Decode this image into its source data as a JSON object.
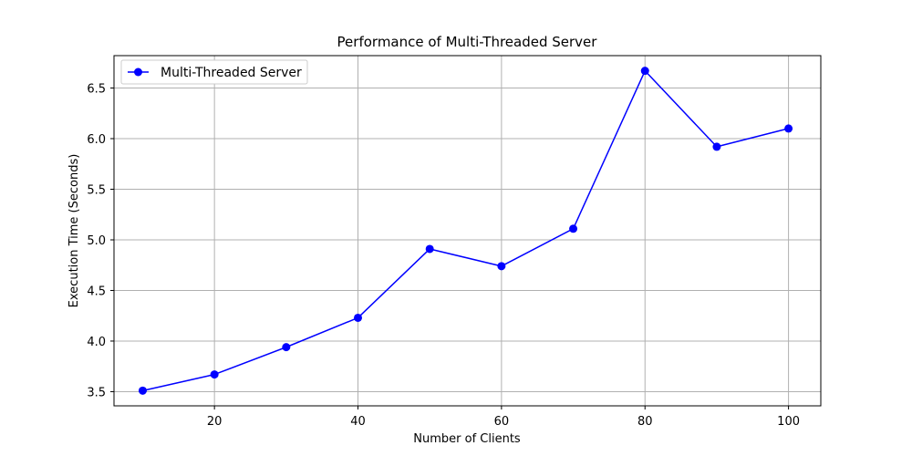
{
  "chart_data": {
    "type": "line",
    "title": "Performance of Multi-Threaded Server",
    "xlabel": "Number of Clients",
    "ylabel": "Execution Time (Seconds)",
    "x": [
      10,
      20,
      30,
      40,
      50,
      60,
      70,
      80,
      90,
      100
    ],
    "series": [
      {
        "name": "Multi-Threaded Server",
        "color": "#0000ff",
        "marker": "circle",
        "values": [
          3.51,
          3.67,
          3.94,
          4.23,
          4.91,
          4.74,
          5.11,
          6.67,
          5.92,
          6.1
        ]
      }
    ],
    "xlim": [
      6,
      104.5
    ],
    "ylim": [
      3.36,
      6.82
    ],
    "xticks": [
      20,
      40,
      60,
      80,
      100
    ],
    "yticks": [
      3.5,
      4.0,
      4.5,
      5.0,
      5.5,
      6.0,
      6.5
    ],
    "xtick_labels": [
      "20",
      "40",
      "60",
      "80",
      "100"
    ],
    "ytick_labels": [
      "3.5",
      "4.0",
      "4.5",
      "5.0",
      "5.5",
      "6.0",
      "6.5"
    ],
    "grid": true,
    "legend_position": "top-left"
  }
}
